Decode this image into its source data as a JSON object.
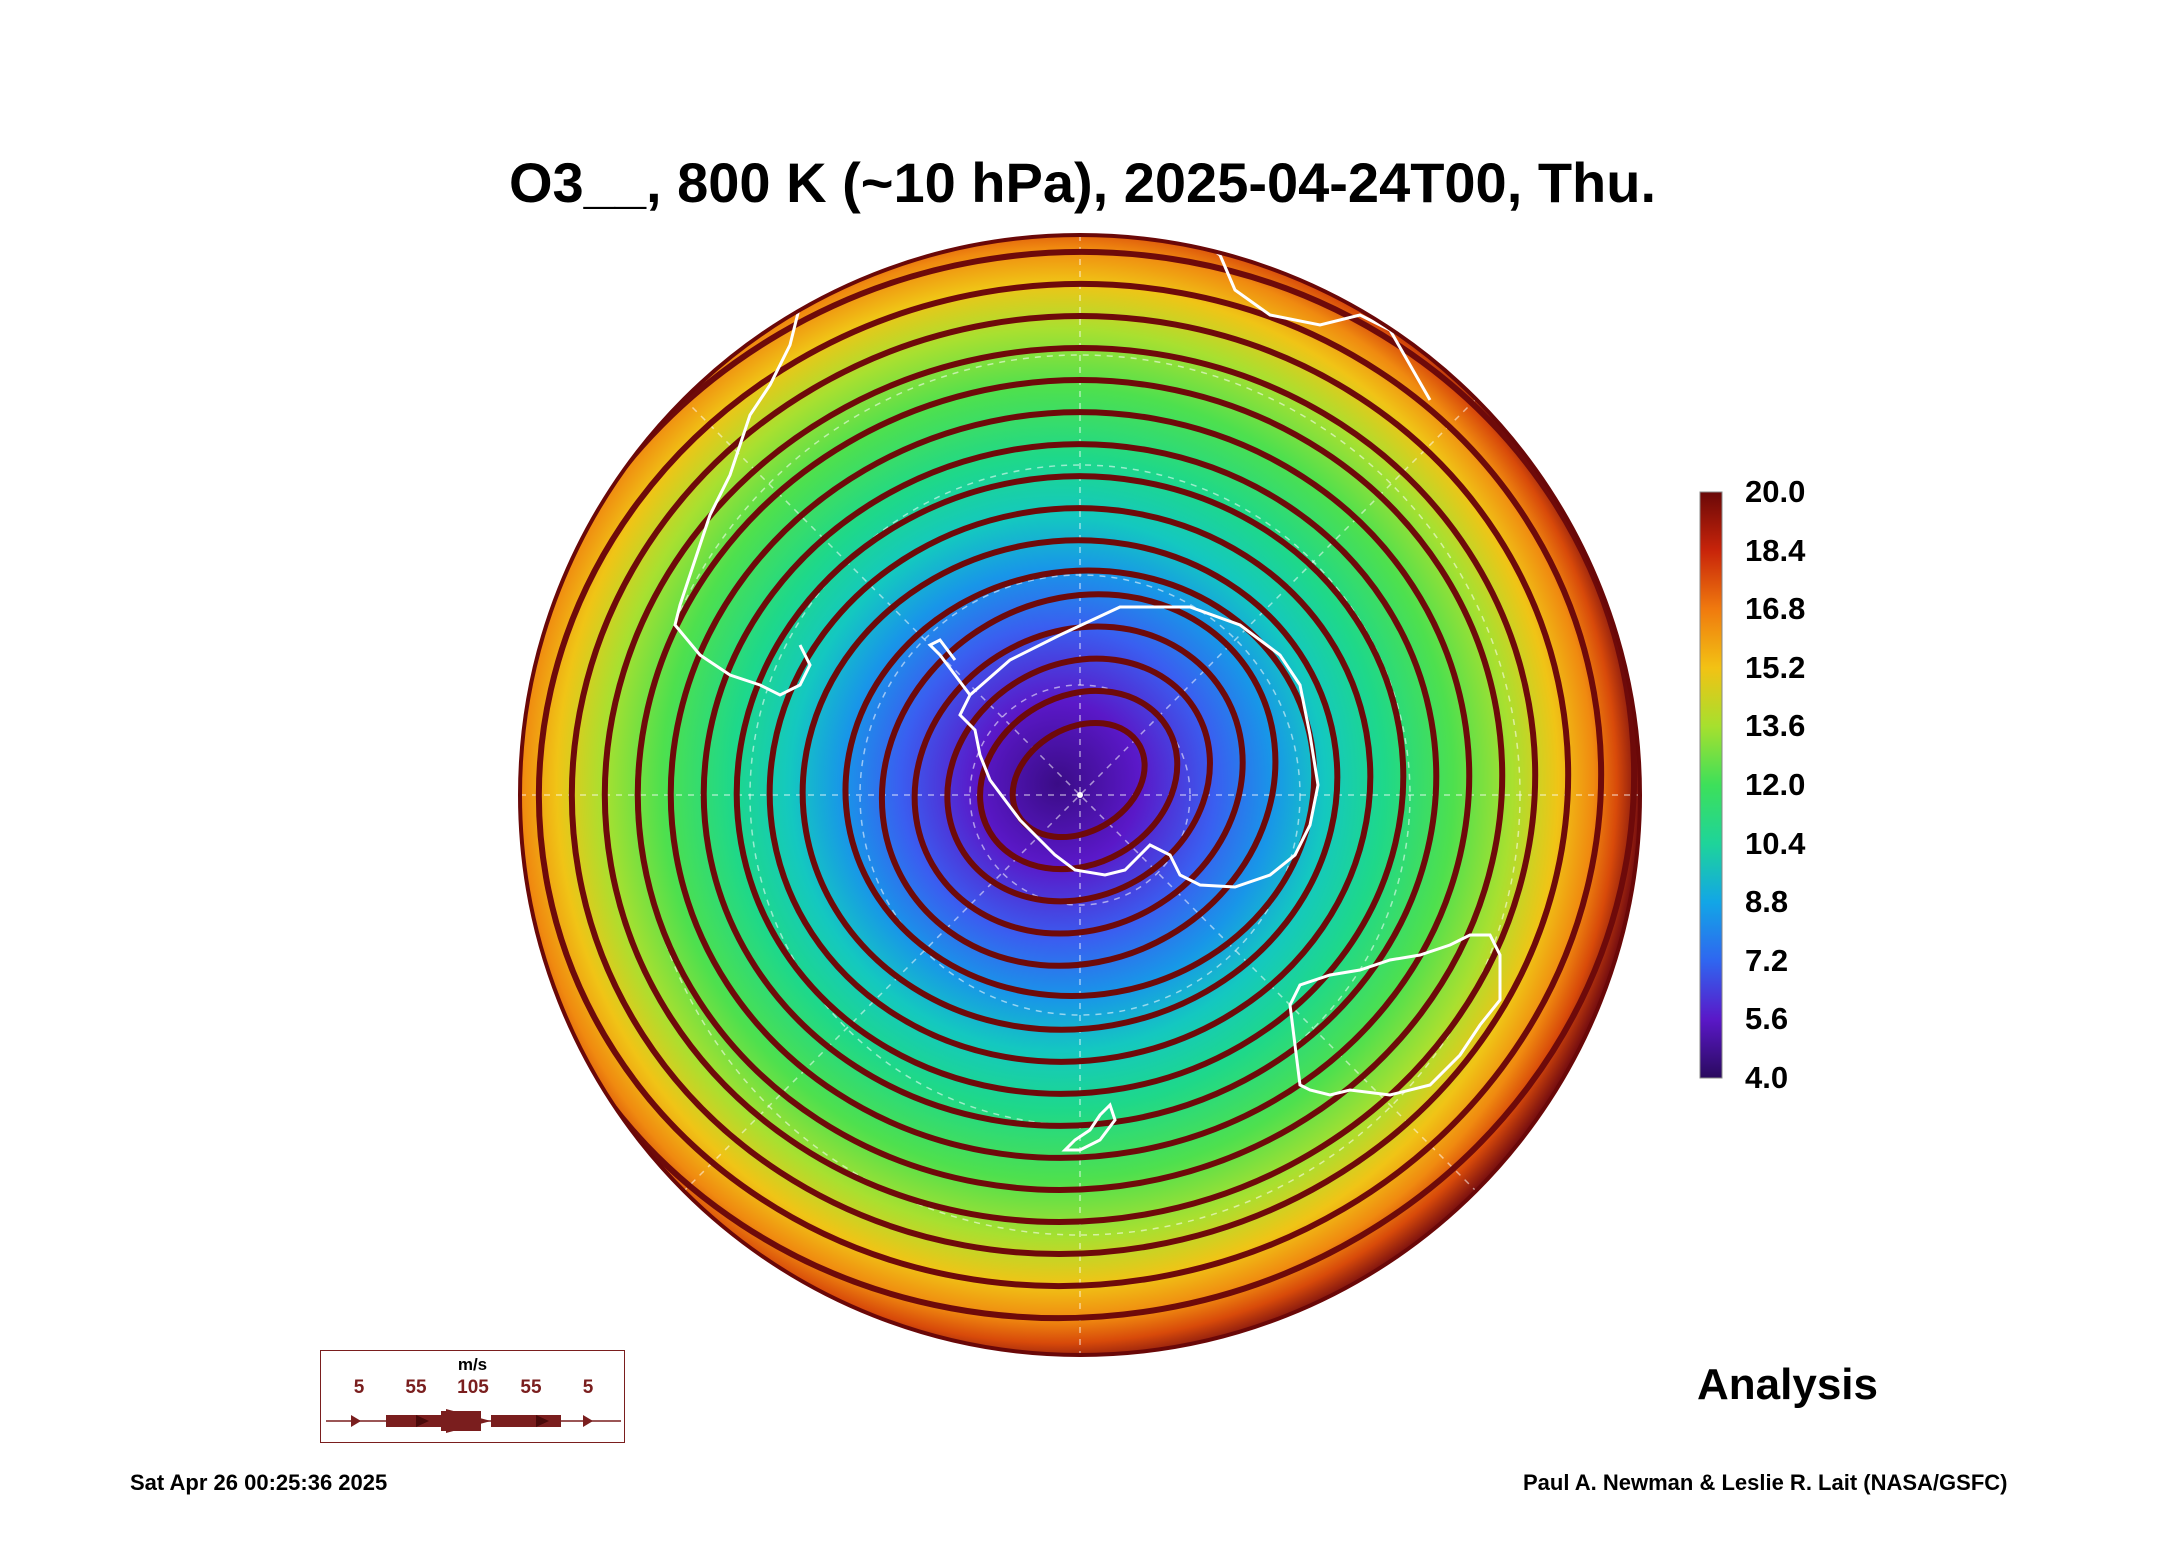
{
  "title": "O3__, 800 K (~10 hPa), 2025-04-24T00, Thu.",
  "colorbar": {
    "labels": [
      "20.0",
      "18.4",
      "16.8",
      "15.2",
      "13.6",
      "12.0",
      "10.4",
      "8.8",
      "7.2",
      "5.6",
      "4.0"
    ],
    "min": 4.0,
    "max": 20.0,
    "colors": [
      "#2a0a5e",
      "#5a18c8",
      "#2f66f0",
      "#12b6e0",
      "#1ed49a",
      "#3de05a",
      "#a6e02e",
      "#f2c214",
      "#f07a0e",
      "#c8240a",
      "#6a0808"
    ]
  },
  "wind_legend": {
    "unit": "m/s",
    "values": [
      "5",
      "55",
      "105",
      "55",
      "5"
    ]
  },
  "status": "Analysis",
  "timestamp": "Sat Apr 26 00:25:36 2025",
  "credit": "Paul A. Newman & Leslie R. Lait (NASA/GSFC)",
  "colors": {
    "streamline": "#6e0a0a",
    "coastline": "#ffffff",
    "outer_ring": "#7a1010"
  }
}
